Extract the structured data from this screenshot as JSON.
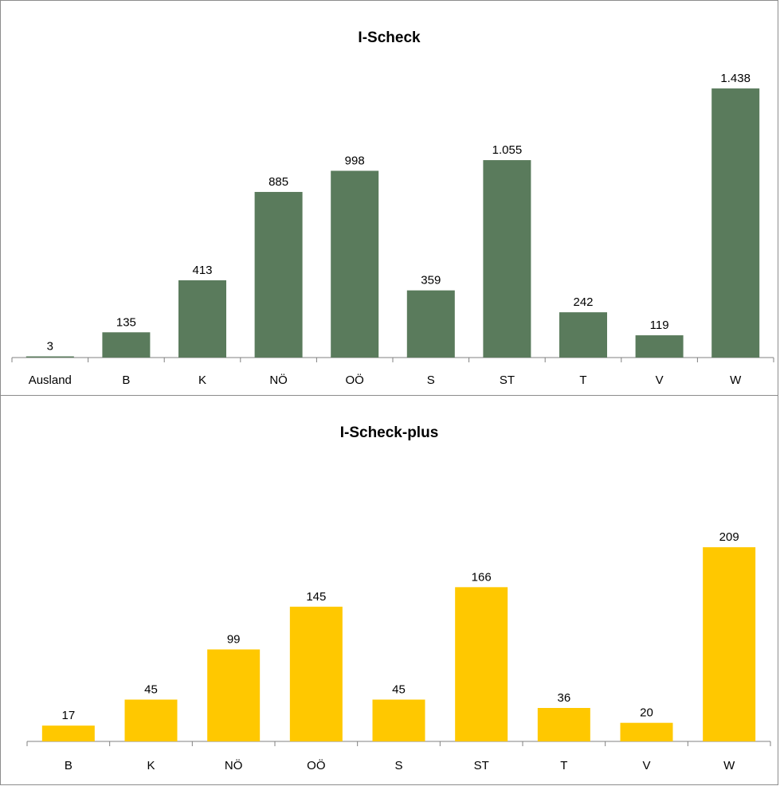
{
  "colors": {
    "chart1_bar": "#5a7b5c",
    "chart2_bar": "#ffc800",
    "axis": "#808080"
  },
  "chart_data": [
    {
      "type": "bar",
      "title": "I-Scheck",
      "categories": [
        "Ausland",
        "B",
        "K",
        "NÖ",
        "OÖ",
        "S",
        "ST",
        "T",
        "V",
        "W"
      ],
      "values": [
        3,
        135,
        413,
        885,
        998,
        359,
        1055,
        242,
        119,
        1438
      ],
      "value_labels": [
        "3",
        "135",
        "413",
        "885",
        "998",
        "359",
        "1.055",
        "242",
        "119",
        "1.438"
      ],
      "ylim": [
        0,
        1600
      ],
      "grid": false,
      "legend": "none"
    },
    {
      "type": "bar",
      "title": "I-Scheck-plus",
      "categories": [
        "B",
        "K",
        "NÖ",
        "OÖ",
        "S",
        "ST",
        "T",
        "V",
        "W"
      ],
      "values": [
        17,
        45,
        99,
        145,
        45,
        166,
        36,
        20,
        209
      ],
      "value_labels": [
        "17",
        "45",
        "99",
        "145",
        "45",
        "166",
        "36",
        "20",
        "209"
      ],
      "ylim": [
        0,
        300
      ],
      "grid": false,
      "legend": "none"
    }
  ]
}
